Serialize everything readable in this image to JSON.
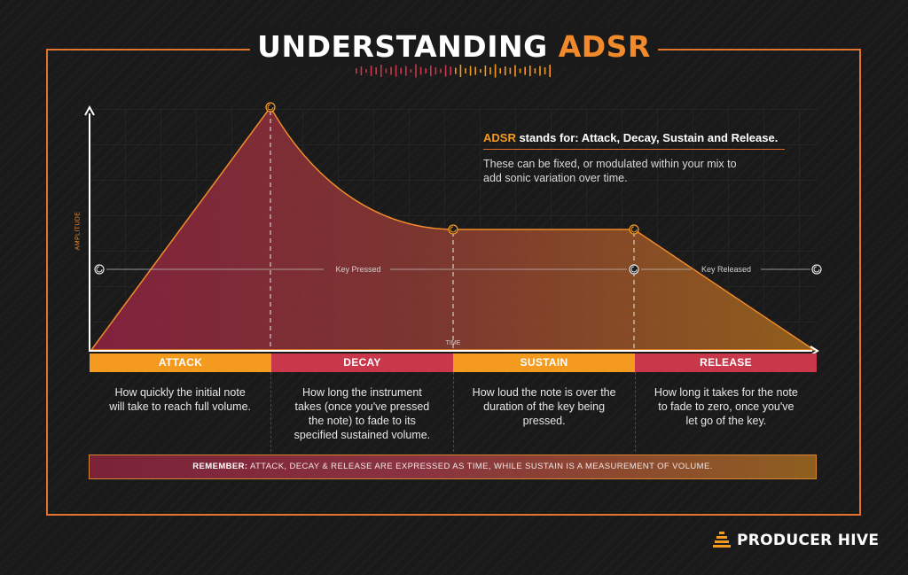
{
  "header": {
    "title_main": "UNDERSTANDING",
    "title_accent": "ADSR"
  },
  "info": {
    "highlight": "ADSR",
    "heading_rest": " stands for: Attack, Decay, Sustain and Release.",
    "body": "These can be fixed, or modulated within your mix to add sonic variation over time."
  },
  "axes": {
    "y_label": "AMPLITUDE",
    "x_label": "TIME"
  },
  "key_line": {
    "pressed_label": "Key Pressed",
    "released_label": "Key Released"
  },
  "stages": [
    {
      "name": "ATTACK",
      "color": "#f39a1f",
      "description": "How quickly the initial note will take to reach full volume."
    },
    {
      "name": "DECAY",
      "color": "#c9384a",
      "description": "How long the instrument takes (once you've pressed the note) to fade to its specified sustained volume."
    },
    {
      "name": "SUSTAIN",
      "color": "#f39a1f",
      "description": "How loud the note is over the duration of the key being pressed."
    },
    {
      "name": "RELEASE",
      "color": "#c9384a",
      "description": "How long it takes for the note to fade to zero, once you've let go of the key."
    }
  ],
  "remember": {
    "lead": "REMEMBER:",
    "text": " ATTACK, DECAY & RELEASE ARE EXPRESSED AS TIME, WHILE SUSTAIN IS A MEASUREMENT OF VOLUME."
  },
  "brand": {
    "name": "PRODUCER HIVE"
  },
  "colors": {
    "accent_orange": "#f39a1f",
    "accent_red": "#c9384a",
    "frame": "#e0742f",
    "background": "#1a1a1a"
  }
}
